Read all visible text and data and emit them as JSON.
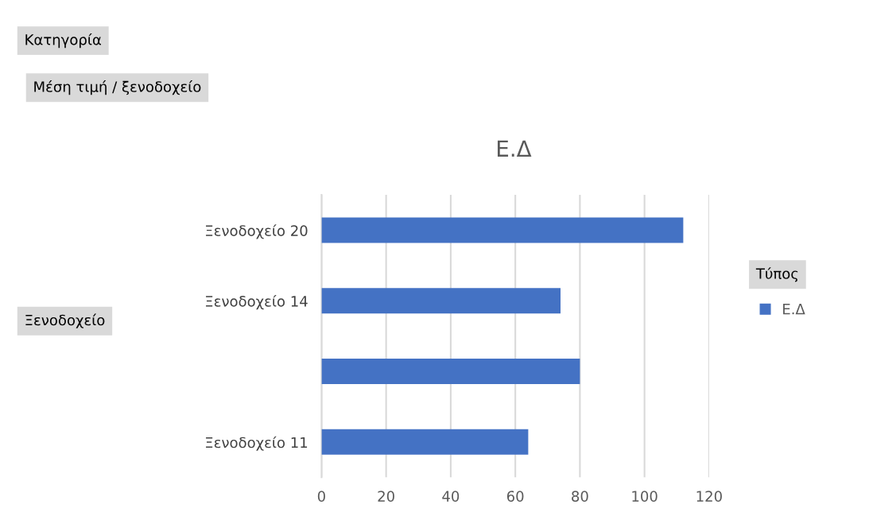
{
  "chart_data": {
    "type": "bar",
    "orientation": "horizontal",
    "title": "Ε.Δ",
    "legend_title": "Τύπος",
    "annotations": [
      "Κατηγορία",
      "Μέση τιμή / ξενοδοχείο",
      "Ξενοδοχείο"
    ],
    "categories": [
      "Ξενοδοχείο 20",
      "Ξενοδοχείο 14",
      null,
      "Ξενοδοχείο 11"
    ],
    "series": [
      {
        "name": "Ε.Δ",
        "color": "#4472c4",
        "values": [
          112,
          74,
          80,
          64
        ]
      }
    ],
    "xlim": [
      0,
      120
    ],
    "xticks": [
      0,
      20,
      40,
      60,
      80,
      100,
      120
    ],
    "grid": "x",
    "legend": "right"
  }
}
